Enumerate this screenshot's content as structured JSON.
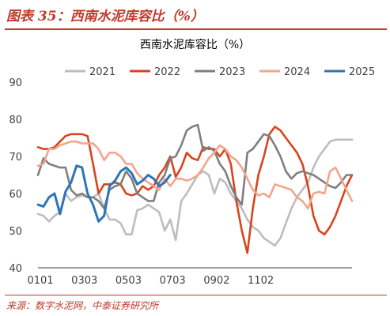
{
  "figure": {
    "title": "图表 35：西南水泥库容比（%）",
    "source": "来源：数字水泥网，中泰证券研究所"
  },
  "colors": {
    "accent": "#c0392b"
  },
  "chart_data": {
    "type": "line",
    "title": "西南水泥库容比（%）",
    "xlabel": "",
    "ylabel": "",
    "x_tick_labels": [
      "0101",
      "0303",
      "0503",
      "0703",
      "0902",
      "1102"
    ],
    "ylim": [
      40,
      90
    ],
    "y_ticks": [
      40,
      50,
      60,
      70,
      80,
      90
    ],
    "grid": false,
    "legend_position": "top",
    "series": [
      {
        "name": "2021",
        "color": "#bdbdbd",
        "values": [
          54.5,
          54,
          52.5,
          54,
          55,
          60,
          58,
          59,
          59.5,
          59,
          59,
          60,
          56,
          53,
          53,
          52,
          49,
          49,
          55.5,
          56,
          57,
          56,
          55,
          50,
          53,
          47.5,
          58,
          60,
          62.5,
          65,
          66,
          65,
          60,
          64,
          63,
          60,
          58,
          56,
          53,
          51,
          50,
          48,
          47,
          46,
          48,
          52,
          56,
          59,
          61,
          63,
          67,
          70,
          72,
          74,
          74.5,
          74.5,
          74.5,
          74.5
        ]
      },
      {
        "name": "2022",
        "color": "#d9441c",
        "values": [
          72.5,
          72,
          72,
          72.5,
          74,
          75.5,
          76,
          76,
          76,
          75.5,
          68,
          60,
          62.5,
          62.5,
          63,
          62.5,
          60,
          59.5,
          60,
          62,
          61,
          62,
          65,
          67,
          70,
          64.5,
          67,
          71,
          69.5,
          69,
          72.5,
          72,
          72,
          70,
          72,
          68,
          58,
          50,
          44,
          56,
          65,
          70,
          76,
          78,
          77,
          75,
          73,
          71,
          68,
          62,
          54,
          50,
          49,
          51,
          54,
          58,
          62,
          65
        ]
      },
      {
        "name": "2023",
        "color": "#7f7f7f",
        "values": [
          65,
          69.5,
          68,
          67.5,
          67,
          67,
          61,
          59.5,
          60,
          59,
          59,
          58,
          56,
          61,
          62,
          62.5,
          66,
          64,
          60,
          59,
          58,
          58,
          63,
          65,
          69.5,
          70,
          73,
          77,
          78,
          78.5,
          71.5,
          72.5,
          71.5,
          68,
          66,
          62,
          59,
          57,
          71,
          72,
          74,
          76,
          75.5,
          73,
          70,
          66,
          64,
          65.5,
          66,
          65.5,
          65,
          64,
          63,
          62,
          61.5,
          63,
          65,
          65
        ]
      },
      {
        "name": "2024",
        "color": "#f4a58a",
        "values": [
          67.5,
          68,
          72,
          72,
          73,
          73.5,
          74,
          74,
          73.5,
          73.5,
          73.5,
          72,
          69,
          71,
          71,
          70,
          68,
          68,
          65.5,
          64,
          63,
          62,
          61,
          64,
          62,
          64,
          64,
          63.5,
          64,
          65,
          67,
          69.5,
          71,
          73,
          72,
          70,
          69,
          67,
          64,
          61,
          59.5,
          60,
          59,
          62.5,
          62,
          61.5,
          61,
          59,
          58,
          56,
          60,
          60.5,
          60,
          66,
          67,
          64,
          61,
          58
        ]
      },
      {
        "name": "2025",
        "color": "#2e75b6",
        "values": [
          57,
          56.5,
          59,
          60,
          54.5,
          60.5,
          63,
          67.5,
          67,
          60,
          57,
          52.5,
          54,
          62,
          63.5,
          66,
          67,
          65.5,
          62.5,
          63.5,
          65,
          64,
          62,
          63,
          65
        ]
      }
    ]
  }
}
